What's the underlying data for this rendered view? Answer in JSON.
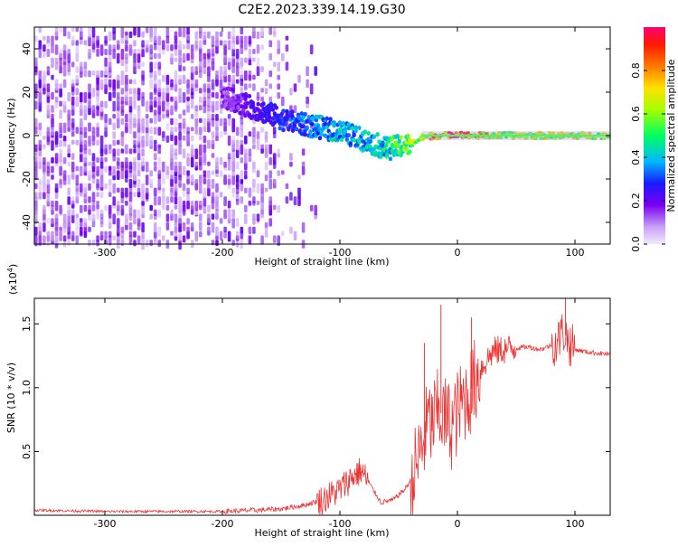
{
  "title": "C2E2.2023.339.14.19.G30",
  "colors": {
    "snr_line": "#ee3333",
    "spec_low": "#c8a8f0",
    "spec_mid": "#6a00e8",
    "spec_high": "#e0004a"
  },
  "chart_data": [
    {
      "type": "heatmap",
      "title": "C2E2.2023.339.14.19.G30",
      "xlabel": "Height of straight line (km)",
      "ylabel": "Frequency (Hz)",
      "xlim": [
        -360,
        130
      ],
      "ylim": [
        -50,
        50
      ],
      "xticks": [
        -300,
        -200,
        -100,
        0,
        100
      ],
      "yticks": [
        -40,
        -20,
        0,
        20,
        40
      ],
      "colorbar": {
        "label": "Normalized spectral amplitude",
        "range": [
          0,
          1
        ],
        "ticks": [
          0.0,
          0.2,
          0.4,
          0.6,
          0.8
        ],
        "tick_labels": [
          "0.0",
          "0.2",
          "0.4",
          "0.6",
          "0.8"
        ]
      },
      "signal_track": {
        "x": [
          -200,
          -180,
          -160,
          -140,
          -120,
          -100,
          -80,
          -60,
          -40,
          -30,
          -20,
          -10,
          0,
          10,
          50,
          90,
          130
        ],
        "y_hz": [
          18,
          14,
          10,
          6,
          4,
          2,
          -2,
          -6,
          -4,
          -1,
          0,
          0,
          1,
          0,
          0,
          0,
          0
        ],
        "amplitude": [
          0.15,
          0.2,
          0.25,
          0.3,
          0.35,
          0.4,
          0.4,
          0.45,
          0.6,
          0.7,
          0.8,
          0.85,
          0.9,
          0.8,
          0.6,
          0.7,
          0.6
        ]
      },
      "noise_region": {
        "x_range": [
          -360,
          -140
        ],
        "y_range": [
          -50,
          50
        ]
      }
    },
    {
      "type": "line",
      "xlabel": "Height of straight line (km)",
      "ylabel": "SNR (10 * v/v)",
      "multiplier_label": "(x10",
      "multiplier_exp": "4",
      "multiplier_close": ")",
      "xlim": [
        -360,
        130
      ],
      "ylim": [
        0,
        1.7
      ],
      "xticks": [
        -300,
        -200,
        -100,
        0,
        100
      ],
      "yticks": [
        0.5,
        1.0,
        1.5
      ],
      "ytick_labels": [
        "0.5",
        "1.0",
        "1.5"
      ],
      "series": [
        {
          "x": [
            -360,
            -300,
            -250,
            -200,
            -170,
            -150,
            -130,
            -115,
            -100,
            -90,
            -82,
            -75,
            -65,
            -55,
            -45,
            -38,
            -33,
            -28,
            -25,
            -22,
            -18,
            -14,
            -10,
            -5,
            0,
            5,
            10,
            15,
            20,
            30,
            40,
            50,
            60,
            70,
            80,
            85,
            90,
            95,
            100,
            110,
            120,
            130
          ],
          "y": [
            0.04,
            0.03,
            0.03,
            0.03,
            0.04,
            0.05,
            0.08,
            0.12,
            0.2,
            0.3,
            0.35,
            0.25,
            0.1,
            0.12,
            0.2,
            0.3,
            0.45,
            0.6,
            0.75,
            0.7,
            0.8,
            0.8,
            0.75,
            0.7,
            0.8,
            0.9,
            0.95,
            1.05,
            1.15,
            1.28,
            1.3,
            1.31,
            1.32,
            1.3,
            1.33,
            1.36,
            1.45,
            1.35,
            1.3,
            1.28,
            1.27,
            1.26
          ]
        }
      ],
      "spikes": [
        {
          "x": -28,
          "y": 1.35
        },
        {
          "x": -14,
          "y": 1.65
        },
        {
          "x": 12,
          "y": 1.55
        },
        {
          "x": 92,
          "y": 1.7
        }
      ]
    }
  ]
}
